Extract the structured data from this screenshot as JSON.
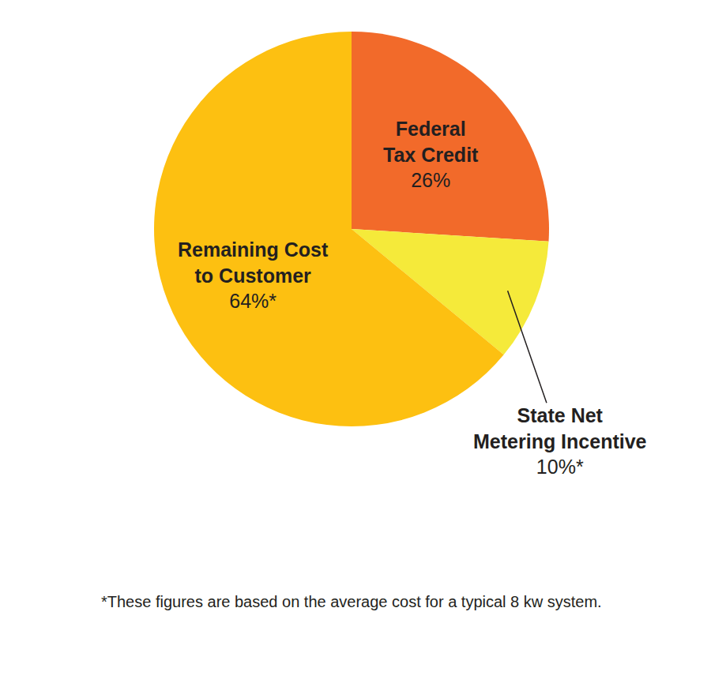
{
  "chart_data": {
    "type": "pie",
    "categories": [
      "Federal Tax Credit",
      "State Net Metering Incentive",
      "Remaining Cost to Customer"
    ],
    "values": [
      26,
      10,
      64
    ],
    "value_labels": [
      "26%",
      "10%*",
      "64%*"
    ],
    "colors": [
      "#f26a2a",
      "#f5ea3a",
      "#fdc011"
    ],
    "data_labels": true,
    "annotations": [
      "*These figures are based on the average cost for a typical 8 kw system."
    ]
  }
}
